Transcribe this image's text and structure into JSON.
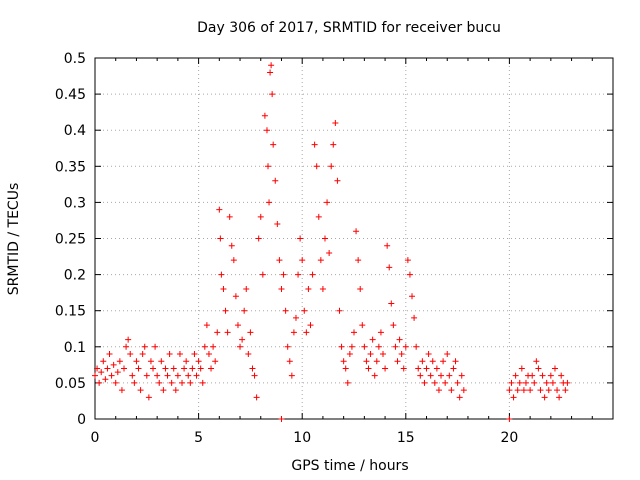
{
  "chart_data": {
    "type": "scatter",
    "title": "Day 306 of 2017, SRMTID for receiver bucu",
    "xlabel": "GPS time / hours",
    "ylabel": "SRMTID / TECUs",
    "xlim": [
      0,
      25
    ],
    "ylim": [
      0,
      0.5
    ],
    "grid": true,
    "marker": "+",
    "color": "#ff0000",
    "x_ticks": [
      0,
      5,
      10,
      15,
      20
    ],
    "x_tick_labels": [
      "0",
      "5",
      "10",
      "15",
      "20"
    ],
    "y_ticks": [
      0,
      0.05,
      0.1,
      0.15,
      0.2,
      0.25,
      0.3,
      0.35,
      0.4,
      0.45,
      0.5
    ],
    "y_tick_labels": [
      "0",
      "0.05",
      "0.1",
      "0.15",
      "0.2",
      "0.25",
      "0.3",
      "0.35",
      "0.4",
      "0.45",
      "0.5"
    ],
    "series": [
      {
        "name": "SRMTID",
        "points": [
          [
            0.0,
            0.06
          ],
          [
            0.1,
            0.07
          ],
          [
            0.2,
            0.05
          ],
          [
            0.3,
            0.065
          ],
          [
            0.4,
            0.08
          ],
          [
            0.5,
            0.055
          ],
          [
            0.6,
            0.07
          ],
          [
            0.7,
            0.09
          ],
          [
            0.8,
            0.06
          ],
          [
            0.9,
            0.075
          ],
          [
            1.0,
            0.05
          ],
          [
            1.1,
            0.065
          ],
          [
            1.2,
            0.08
          ],
          [
            1.3,
            0.04
          ],
          [
            1.4,
            0.07
          ],
          [
            1.5,
            0.1
          ],
          [
            1.6,
            0.11
          ],
          [
            1.7,
            0.09
          ],
          [
            1.8,
            0.06
          ],
          [
            1.9,
            0.05
          ],
          [
            2.0,
            0.08
          ],
          [
            2.1,
            0.07
          ],
          [
            2.2,
            0.04
          ],
          [
            2.3,
            0.09
          ],
          [
            2.4,
            0.1
          ],
          [
            2.5,
            0.06
          ],
          [
            2.6,
            0.03
          ],
          [
            2.7,
            0.08
          ],
          [
            2.8,
            0.07
          ],
          [
            2.9,
            0.1
          ],
          [
            3.0,
            0.06
          ],
          [
            3.1,
            0.05
          ],
          [
            3.2,
            0.08
          ],
          [
            3.3,
            0.04
          ],
          [
            3.4,
            0.07
          ],
          [
            3.5,
            0.06
          ],
          [
            3.6,
            0.09
          ],
          [
            3.7,
            0.05
          ],
          [
            3.8,
            0.07
          ],
          [
            3.9,
            0.04
          ],
          [
            4.0,
            0.06
          ],
          [
            4.1,
            0.09
          ],
          [
            4.2,
            0.05
          ],
          [
            4.3,
            0.07
          ],
          [
            4.4,
            0.08
          ],
          [
            4.5,
            0.06
          ],
          [
            4.6,
            0.05
          ],
          [
            4.7,
            0.07
          ],
          [
            4.8,
            0.09
          ],
          [
            4.9,
            0.06
          ],
          [
            5.0,
            0.08
          ],
          [
            5.1,
            0.07
          ],
          [
            5.2,
            0.05
          ],
          [
            5.3,
            0.1
          ],
          [
            5.4,
            0.13
          ],
          [
            5.5,
            0.09
          ],
          [
            5.6,
            0.07
          ],
          [
            5.7,
            0.1
          ],
          [
            5.8,
            0.08
          ],
          [
            5.9,
            0.12
          ],
          [
            6.0,
            0.29
          ],
          [
            6.05,
            0.25
          ],
          [
            6.1,
            0.2
          ],
          [
            6.2,
            0.18
          ],
          [
            6.3,
            0.15
          ],
          [
            6.4,
            0.12
          ],
          [
            6.5,
            0.28
          ],
          [
            6.6,
            0.24
          ],
          [
            6.7,
            0.22
          ],
          [
            6.8,
            0.17
          ],
          [
            6.9,
            0.13
          ],
          [
            7.0,
            0.1
          ],
          [
            7.1,
            0.11
          ],
          [
            7.2,
            0.15
          ],
          [
            7.3,
            0.18
          ],
          [
            7.4,
            0.09
          ],
          [
            7.5,
            0.12
          ],
          [
            7.6,
            0.07
          ],
          [
            7.7,
            0.06
          ],
          [
            7.8,
            0.03
          ],
          [
            7.9,
            0.25
          ],
          [
            8.0,
            0.28
          ],
          [
            8.1,
            0.2
          ],
          [
            8.2,
            0.42
          ],
          [
            8.3,
            0.4
          ],
          [
            8.35,
            0.35
          ],
          [
            8.4,
            0.3
          ],
          [
            8.45,
            0.48
          ],
          [
            8.5,
            0.49
          ],
          [
            8.55,
            0.45
          ],
          [
            8.6,
            0.38
          ],
          [
            8.7,
            0.33
          ],
          [
            8.8,
            0.27
          ],
          [
            8.9,
            0.22
          ],
          [
            9.0,
            0.18
          ],
          [
            9.1,
            0.2
          ],
          [
            9.2,
            0.15
          ],
          [
            9.3,
            0.1
          ],
          [
            9.4,
            0.08
          ],
          [
            9.5,
            0.06
          ],
          [
            9.6,
            0.12
          ],
          [
            9.7,
            0.14
          ],
          [
            9.8,
            0.2
          ],
          [
            9.9,
            0.25
          ],
          [
            10.0,
            0.22
          ],
          [
            10.1,
            0.15
          ],
          [
            10.2,
            0.12
          ],
          [
            10.3,
            0.18
          ],
          [
            10.4,
            0.13
          ],
          [
            10.5,
            0.2
          ],
          [
            10.6,
            0.38
          ],
          [
            10.7,
            0.35
          ],
          [
            10.8,
            0.28
          ],
          [
            10.9,
            0.22
          ],
          [
            11.0,
            0.18
          ],
          [
            11.1,
            0.25
          ],
          [
            11.2,
            0.3
          ],
          [
            11.3,
            0.23
          ],
          [
            11.4,
            0.35
          ],
          [
            11.5,
            0.38
          ],
          [
            11.6,
            0.41
          ],
          [
            11.7,
            0.33
          ],
          [
            11.8,
            0.15
          ],
          [
            11.9,
            0.1
          ],
          [
            12.0,
            0.08
          ],
          [
            12.1,
            0.07
          ],
          [
            12.2,
            0.05
          ],
          [
            12.3,
            0.09
          ],
          [
            12.4,
            0.1
          ],
          [
            12.5,
            0.12
          ],
          [
            12.6,
            0.26
          ],
          [
            12.7,
            0.22
          ],
          [
            12.8,
            0.18
          ],
          [
            12.9,
            0.13
          ],
          [
            13.0,
            0.1
          ],
          [
            13.1,
            0.08
          ],
          [
            13.2,
            0.07
          ],
          [
            13.3,
            0.09
          ],
          [
            13.4,
            0.11
          ],
          [
            13.5,
            0.06
          ],
          [
            13.6,
            0.08
          ],
          [
            13.7,
            0.1
          ],
          [
            13.8,
            0.12
          ],
          [
            13.9,
            0.09
          ],
          [
            14.0,
            0.07
          ],
          [
            14.1,
            0.24
          ],
          [
            14.2,
            0.21
          ],
          [
            14.3,
            0.16
          ],
          [
            14.4,
            0.13
          ],
          [
            14.5,
            0.1
          ],
          [
            14.6,
            0.08
          ],
          [
            14.7,
            0.11
          ],
          [
            14.8,
            0.09
          ],
          [
            14.9,
            0.07
          ],
          [
            15.0,
            0.1
          ],
          [
            15.1,
            0.22
          ],
          [
            15.2,
            0.2
          ],
          [
            15.3,
            0.17
          ],
          [
            15.4,
            0.14
          ],
          [
            15.5,
            0.1
          ],
          [
            15.6,
            0.07
          ],
          [
            15.7,
            0.06
          ],
          [
            15.8,
            0.08
          ],
          [
            15.9,
            0.05
          ],
          [
            16.0,
            0.07
          ],
          [
            16.1,
            0.09
          ],
          [
            16.2,
            0.06
          ],
          [
            16.3,
            0.08
          ],
          [
            16.4,
            0.05
          ],
          [
            16.5,
            0.07
          ],
          [
            16.6,
            0.04
          ],
          [
            16.7,
            0.06
          ],
          [
            16.8,
            0.08
          ],
          [
            16.9,
            0.05
          ],
          [
            17.0,
            0.09
          ],
          [
            17.1,
            0.06
          ],
          [
            17.2,
            0.04
          ],
          [
            17.3,
            0.07
          ],
          [
            17.4,
            0.08
          ],
          [
            17.5,
            0.05
          ],
          [
            17.6,
            0.03
          ],
          [
            17.7,
            0.06
          ],
          [
            17.8,
            0.04
          ],
          [
            20.0,
            0.04
          ],
          [
            20.1,
            0.05
          ],
          [
            20.2,
            0.03
          ],
          [
            20.3,
            0.06
          ],
          [
            20.4,
            0.04
          ],
          [
            20.5,
            0.05
          ],
          [
            20.6,
            0.07
          ],
          [
            20.7,
            0.04
          ],
          [
            20.8,
            0.05
          ],
          [
            20.9,
            0.06
          ],
          [
            21.0,
            0.04
          ],
          [
            21.1,
            0.06
          ],
          [
            21.2,
            0.05
          ],
          [
            21.3,
            0.08
          ],
          [
            21.4,
            0.07
          ],
          [
            21.5,
            0.04
          ],
          [
            21.6,
            0.06
          ],
          [
            21.7,
            0.03
          ],
          [
            21.8,
            0.05
          ],
          [
            21.9,
            0.04
          ],
          [
            22.0,
            0.06
          ],
          [
            22.1,
            0.05
          ],
          [
            22.2,
            0.07
          ],
          [
            22.3,
            0.04
          ],
          [
            22.4,
            0.03
          ],
          [
            22.5,
            0.06
          ],
          [
            22.6,
            0.05
          ],
          [
            22.7,
            0.04
          ],
          [
            22.8,
            0.05
          ],
          [
            9.0,
            0.0
          ],
          [
            20.0,
            0.0
          ]
        ]
      }
    ]
  }
}
